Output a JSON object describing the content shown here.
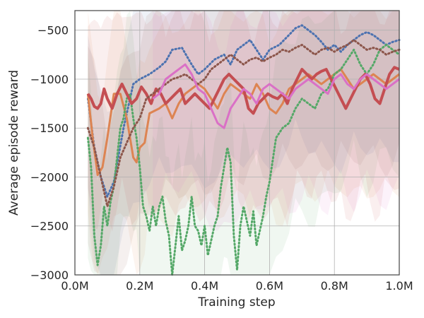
{
  "chart_data": {
    "type": "line",
    "title": "",
    "xlabel": "Training step",
    "ylabel": "Average episode reward",
    "xlim": [
      0,
      1000000
    ],
    "ylim": [
      -3000,
      -300
    ],
    "grid": true,
    "legend": "none",
    "xticks": [
      {
        "value": 0,
        "label": "0.0M"
      },
      {
        "value": 200000,
        "label": "0.2M"
      },
      {
        "value": 400000,
        "label": "0.4M"
      },
      {
        "value": 600000,
        "label": "0.6M"
      },
      {
        "value": 800000,
        "label": "0.8M"
      },
      {
        "value": 1000000,
        "label": "1.0M"
      }
    ],
    "yticks": [
      {
        "value": -500,
        "label": "−500"
      },
      {
        "value": -1000,
        "label": "−1000"
      },
      {
        "value": -1500,
        "label": "−1500"
      },
      {
        "value": -2000,
        "label": "−2000"
      },
      {
        "value": -2500,
        "label": "−2500"
      },
      {
        "value": -3000,
        "label": "−3000"
      }
    ],
    "series": [
      {
        "color": "#4c72b0",
        "style": "dotted",
        "band_color": "#4c72b0",
        "x": [
          40000,
          60000,
          80000,
          100000,
          120000,
          150000,
          180000,
          200000,
          230000,
          260000,
          280000,
          300000,
          330000,
          360000,
          380000,
          400000,
          430000,
          460000,
          480000,
          500000,
          520000,
          540000,
          560000,
          580000,
          600000,
          630000,
          660000,
          680000,
          700000,
          720000,
          740000,
          760000,
          780000,
          800000,
          820000,
          840000,
          860000,
          880000,
          900000,
          920000,
          940000,
          960000,
          980000,
          1000000
        ],
        "y": [
          -1200,
          -1700,
          -2000,
          -2200,
          -2050,
          -1500,
          -1050,
          -1000,
          -950,
          -880,
          -820,
          -700,
          -680,
          -850,
          -950,
          -900,
          -800,
          -750,
          -850,
          -700,
          -650,
          -600,
          -700,
          -800,
          -700,
          -650,
          -550,
          -480,
          -450,
          -500,
          -550,
          -620,
          -700,
          -650,
          -720,
          -650,
          -600,
          -550,
          -520,
          -550,
          -600,
          -650,
          -620,
          -600
        ]
      },
      {
        "color": "#dd8452",
        "style": "solid",
        "band_color": "#dd8452",
        "x": [
          40000,
          55000,
          70000,
          85000,
          100000,
          120000,
          140000,
          160000,
          180000,
          190000,
          200000,
          215000,
          230000,
          260000,
          280000,
          300000,
          320000,
          340000,
          360000,
          380000,
          400000,
          420000,
          440000,
          460000,
          480000,
          500000,
          520000,
          540000,
          560000,
          580000,
          600000,
          620000,
          640000,
          660000,
          680000,
          700000,
          720000,
          740000,
          760000,
          780000,
          800000,
          820000,
          840000,
          860000,
          880000,
          900000,
          920000,
          940000,
          960000,
          980000,
          1000000
        ],
        "y": [
          -1150,
          -1600,
          -1980,
          -1900,
          -1600,
          -1150,
          -1150,
          -1400,
          -1800,
          -1850,
          -1700,
          -1650,
          -1350,
          -1300,
          -1250,
          -1400,
          -1250,
          -1150,
          -1100,
          -1050,
          -1100,
          -1200,
          -1300,
          -1150,
          -1050,
          -1100,
          -1150,
          -1200,
          -1050,
          -1150,
          -1300,
          -1350,
          -1250,
          -1100,
          -1050,
          -1000,
          -950,
          -1000,
          -1050,
          -1000,
          -950,
          -900,
          -1000,
          -1100,
          -1050,
          -1000,
          -950,
          -1000,
          -1050,
          -1000,
          -950
        ]
      },
      {
        "color": "#55a868",
        "style": "dotted",
        "band_color": "#55a868",
        "x": [
          40000,
          50000,
          60000,
          70000,
          80000,
          90000,
          100000,
          110000,
          120000,
          130000,
          140000,
          150000,
          160000,
          170000,
          180000,
          190000,
          200000,
          210000,
          220000,
          230000,
          240000,
          250000,
          260000,
          270000,
          280000,
          290000,
          300000,
          310000,
          320000,
          330000,
          340000,
          350000,
          360000,
          370000,
          380000,
          390000,
          400000,
          410000,
          420000,
          430000,
          440000,
          450000,
          460000,
          470000,
          480000,
          490000,
          500000,
          510000,
          520000,
          530000,
          540000,
          550000,
          560000,
          570000,
          580000,
          590000,
          600000,
          620000,
          640000,
          660000,
          680000,
          700000,
          720000,
          740000,
          760000,
          780000,
          800000,
          820000,
          840000,
          860000,
          880000,
          900000,
          920000,
          940000,
          960000,
          980000,
          1000000
        ],
        "y": [
          -1600,
          -1900,
          -2600,
          -2900,
          -2700,
          -2300,
          -2500,
          -2250,
          -2100,
          -1800,
          -1500,
          -1400,
          -1200,
          -1150,
          -1400,
          -1600,
          -1900,
          -2300,
          -2400,
          -2550,
          -2300,
          -2500,
          -2300,
          -2200,
          -2450,
          -2600,
          -3000,
          -2700,
          -2400,
          -2750,
          -2650,
          -2500,
          -2200,
          -2500,
          -2550,
          -2700,
          -2500,
          -2800,
          -2650,
          -2500,
          -2400,
          -2100,
          -1900,
          -1700,
          -1850,
          -2600,
          -2950,
          -2500,
          -2300,
          -2450,
          -2600,
          -2350,
          -2700,
          -2550,
          -2400,
          -2200,
          -2050,
          -1600,
          -1500,
          -1450,
          -1300,
          -1200,
          -1250,
          -1300,
          -1150,
          -1100,
          -950,
          -900,
          -800,
          -700,
          -850,
          -950,
          -850,
          -700,
          -650,
          -700,
          -750
        ]
      },
      {
        "color": "#c44e52",
        "style": "solid-thick",
        "band_color": "#c44e52",
        "x": [
          40000,
          50000,
          60000,
          70000,
          80000,
          90000,
          100000,
          115000,
          130000,
          145000,
          160000,
          175000,
          190000,
          205000,
          220000,
          235000,
          250000,
          265000,
          280000,
          295000,
          310000,
          325000,
          340000,
          355000,
          370000,
          385000,
          400000,
          415000,
          430000,
          445000,
          460000,
          475000,
          490000,
          505000,
          520000,
          535000,
          550000,
          565000,
          580000,
          595000,
          610000,
          625000,
          640000,
          655000,
          670000,
          685000,
          700000,
          715000,
          730000,
          745000,
          760000,
          775000,
          790000,
          805000,
          820000,
          835000,
          850000,
          865000,
          880000,
          895000,
          910000,
          925000,
          940000,
          955000,
          970000,
          985000,
          1000000
        ],
        "y": [
          -1150,
          -1200,
          -1280,
          -1300,
          -1250,
          -1100,
          -1200,
          -1300,
          -1150,
          -1050,
          -1150,
          -1250,
          -1200,
          -1080,
          -1150,
          -1250,
          -1100,
          -1150,
          -1250,
          -1200,
          -1150,
          -1100,
          -1250,
          -1200,
          -1150,
          -1200,
          -1250,
          -1300,
          -1200,
          -1100,
          -1000,
          -950,
          -1000,
          -1050,
          -1100,
          -1300,
          -1350,
          -1250,
          -1200,
          -1150,
          -1180,
          -1200,
          -1150,
          -1250,
          -1100,
          -1000,
          -900,
          -950,
          -1000,
          -950,
          -920,
          -900,
          -1000,
          -1100,
          -1200,
          -1300,
          -1200,
          -1100,
          -1000,
          -950,
          -1050,
          -1200,
          -1250,
          -1100,
          -950,
          -880,
          -900
        ]
      },
      {
        "color": "#8c564b",
        "style": "dotted",
        "band_color": "#8c564b",
        "x": [
          40000,
          60000,
          80000,
          100000,
          120000,
          140000,
          160000,
          180000,
          200000,
          220000,
          240000,
          260000,
          280000,
          300000,
          320000,
          340000,
          360000,
          380000,
          400000,
          420000,
          440000,
          460000,
          480000,
          500000,
          520000,
          540000,
          560000,
          580000,
          600000,
          620000,
          640000,
          660000,
          680000,
          700000,
          720000,
          740000,
          760000,
          780000,
          800000,
          820000,
          840000,
          860000,
          880000,
          900000,
          920000,
          940000,
          960000,
          980000,
          1000000
        ],
        "y": [
          -1500,
          -1700,
          -2000,
          -2300,
          -2100,
          -1800,
          -1650,
          -1500,
          -1400,
          -1200,
          -1150,
          -1100,
          -1050,
          -1000,
          -980,
          -950,
          -1000,
          -1050,
          -1000,
          -900,
          -850,
          -800,
          -750,
          -800,
          -850,
          -800,
          -780,
          -820,
          -780,
          -750,
          -700,
          -720,
          -680,
          -650,
          -700,
          -750,
          -700,
          -680,
          -720,
          -680,
          -650,
          -600,
          -650,
          -700,
          -680,
          -700,
          -750,
          -720,
          -700
        ]
      },
      {
        "color": "#da70c6",
        "style": "solid",
        "band_color": "#da70c6",
        "x": [
          240000,
          260000,
          280000,
          300000,
          320000,
          340000,
          360000,
          380000,
          400000,
          420000,
          440000,
          460000,
          480000,
          500000,
          520000,
          540000,
          560000,
          580000,
          600000,
          620000,
          640000,
          660000,
          680000,
          700000,
          720000,
          740000,
          760000,
          780000,
          800000,
          820000,
          840000,
          860000,
          880000,
          900000,
          920000,
          940000,
          960000,
          980000,
          1000000
        ],
        "y": [
          -1200,
          -1150,
          -1000,
          -950,
          -900,
          -850,
          -950,
          -1100,
          -1150,
          -1300,
          -1450,
          -1500,
          -1300,
          -1200,
          -1100,
          -1150,
          -1250,
          -1100,
          -1050,
          -1100,
          -1150,
          -1200,
          -1100,
          -1050,
          -1000,
          -1050,
          -1100,
          -1150,
          -1000,
          -950,
          -1050,
          -1100,
          -1000,
          -950,
          -1000,
          -1050,
          -1100,
          -1050,
          -1000
        ]
      }
    ]
  }
}
